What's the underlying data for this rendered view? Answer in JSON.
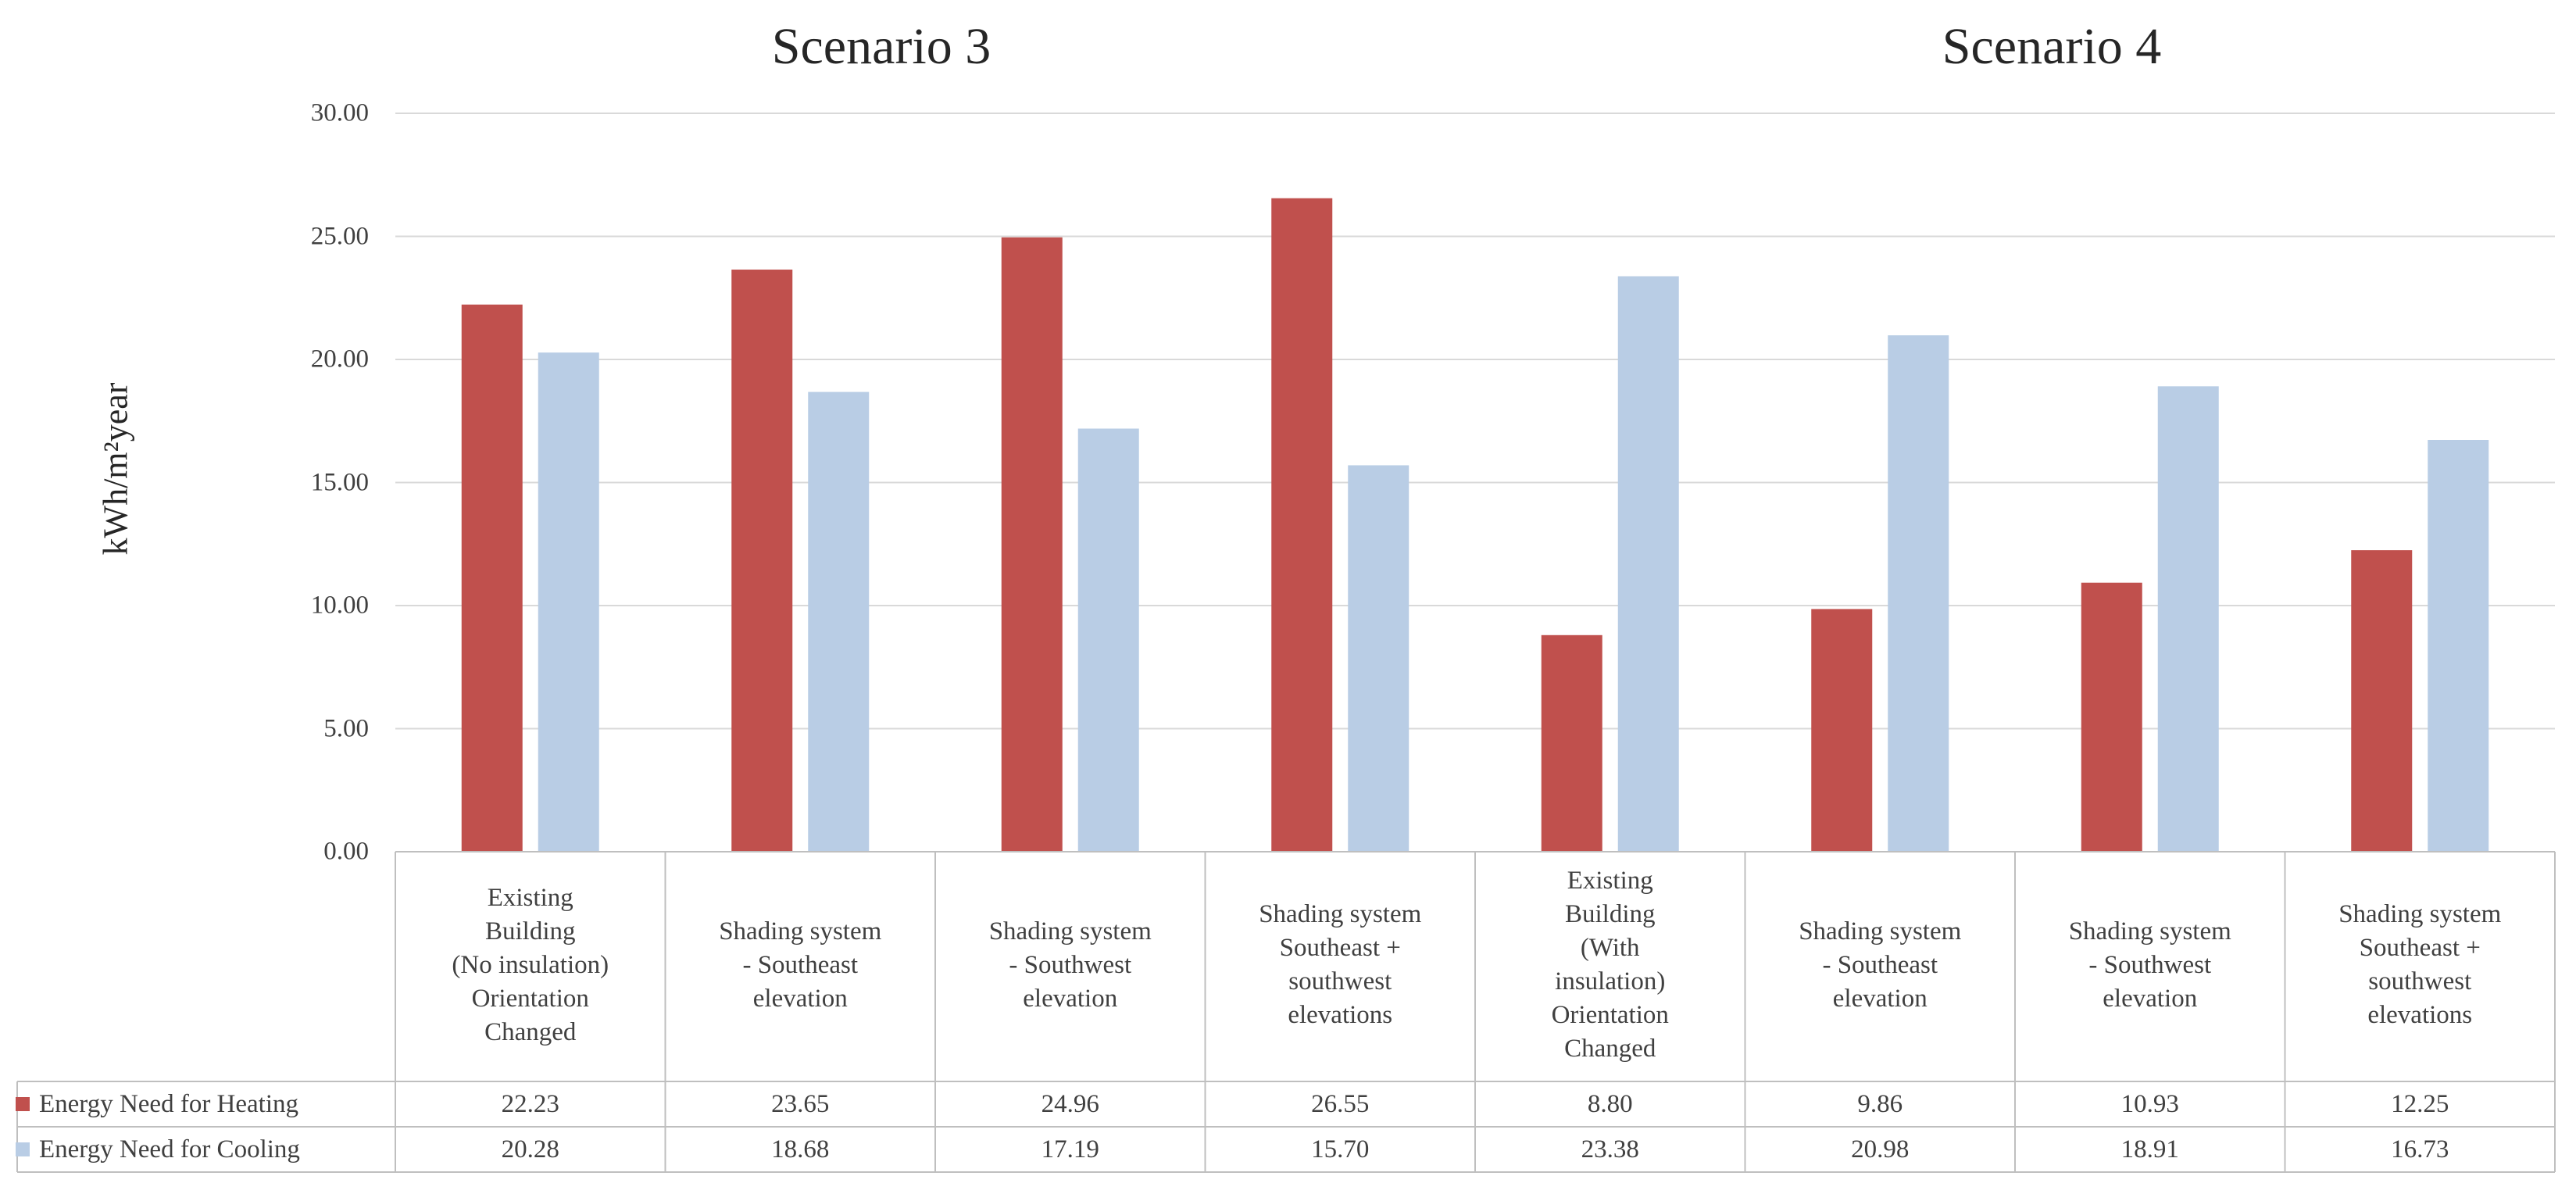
{
  "chart_data": {
    "type": "bar",
    "groups": [
      "Scenario 3",
      "Scenario 4"
    ],
    "ylabel": "kWh/m²year",
    "ylim": [
      0,
      30
    ],
    "yticks": [
      "0.00",
      "5.00",
      "10.00",
      "15.00",
      "20.00",
      "25.00",
      "30.00"
    ],
    "categories": [
      "Existing\nBuilding\n(No insulation)\nOrientation\nChanged",
      "Shading system\n- Southeast\nelevation",
      "Shading system\n- Southwest\nelevation",
      "Shading system\nSoutheast +\nsouthwest\nelevations",
      "Existing\nBuilding\n(With\ninsulation)\nOrientation\nChanged",
      "Shading system\n- Southeast\nelevation",
      "Shading system\n- Southwest\nelevation",
      "Shading system\nSoutheast +\nsouthwest\nelevations"
    ],
    "series": [
      {
        "name": "Energy Need for Heating",
        "color": "#c0504d",
        "values": [
          22.23,
          23.65,
          24.96,
          26.55,
          8.8,
          9.86,
          10.93,
          12.25
        ],
        "labels": [
          "22.23",
          "23.65",
          "24.96",
          "26.55",
          "8.80",
          "9.86",
          "10.93",
          "12.25"
        ]
      },
      {
        "name": "Energy Need for Cooling",
        "color": "#b9cde5",
        "values": [
          20.28,
          18.68,
          17.19,
          15.7,
          23.38,
          20.98,
          18.91,
          16.73
        ],
        "labels": [
          "20.28",
          "18.68",
          "17.19",
          "15.70",
          "23.38",
          "20.98",
          "18.91",
          "16.73"
        ]
      }
    ],
    "legend": "data-table-left",
    "grid": true
  },
  "colors": {
    "grid": "#d9d9d9",
    "border": "#bfbfbf"
  }
}
